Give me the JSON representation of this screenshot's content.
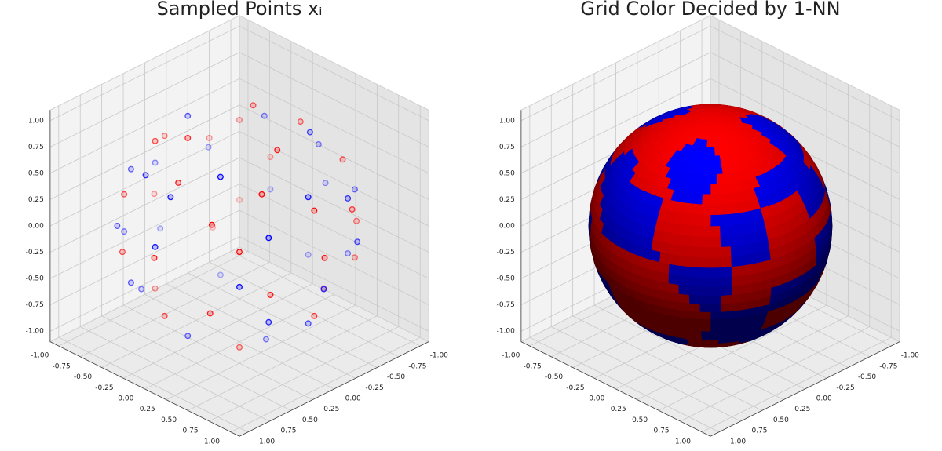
{
  "chart_data": [
    {
      "type": "scatter3d",
      "title": "Sampled Points xᵢ",
      "xlim": [
        -1.1,
        1.1
      ],
      "ylim": [
        -1.1,
        1.1
      ],
      "zlim": [
        -1.1,
        1.1
      ],
      "xticks": [
        {
          "value": -1,
          "label": "-1.00"
        },
        {
          "value": -0.75,
          "label": "-0.75"
        },
        {
          "value": -0.5,
          "label": "-0.50"
        },
        {
          "value": -0.25,
          "label": "-0.25"
        },
        {
          "value": 0,
          "label": "0.00"
        },
        {
          "value": 0.25,
          "label": "0.25"
        },
        {
          "value": 0.5,
          "label": "0.50"
        },
        {
          "value": 0.75,
          "label": "0.75"
        },
        {
          "value": 1,
          "label": "1.00"
        }
      ],
      "yticks": [
        {
          "value": -1,
          "label": "-1.00"
        },
        {
          "value": -0.75,
          "label": "-0.75"
        },
        {
          "value": -0.5,
          "label": "-0.50"
        },
        {
          "value": -0.25,
          "label": "-0.25"
        },
        {
          "value": 0,
          "label": "0.00"
        },
        {
          "value": 0.25,
          "label": "0.25"
        },
        {
          "value": 0.5,
          "label": "0.50"
        },
        {
          "value": 0.75,
          "label": "0.75"
        },
        {
          "value": 1,
          "label": "1.00"
        }
      ],
      "zticks": [
        {
          "value": -1,
          "label": "-1.00"
        },
        {
          "value": -0.75,
          "label": "-0.75"
        },
        {
          "value": -0.5,
          "label": "-0.50"
        },
        {
          "value": -0.25,
          "label": "-0.25"
        },
        {
          "value": 0,
          "label": "0.00"
        },
        {
          "value": 0.25,
          "label": "0.25"
        },
        {
          "value": 0.5,
          "label": "0.50"
        },
        {
          "value": 0.75,
          "label": "0.75"
        },
        {
          "value": 1,
          "label": "1.00"
        }
      ],
      "series": [
        {
          "color": "#ff0000",
          "x": [
            0.44,
            -0.22,
            -0.22,
            0.62,
            -0.62,
            0,
            0,
            0.87,
            0.44,
            -0.87,
            -0.62,
            0.44,
            0.67,
            -0.67,
            -0.83,
            0.83,
            0.99,
            0,
            -0.5,
            -0.5,
            -0.99,
            0.5,
            0.86,
            0.48,
            -0.67,
            0.67,
            0,
            -0.75,
            0.87,
            -0.62,
            0.36,
            0.31
          ],
          "y": [
            0,
            0.38,
            -0.38,
            0.36,
            0.36,
            -0.71,
            0.71,
            0,
            0.76,
            0,
            -0.62,
            -0.76,
            0.67,
            0.67,
            -0.48,
            -0.48,
            0,
            0.99,
            -0.86,
            0.86,
            0,
            -0.86,
            0.5,
            0.82,
            -0.67,
            -0.67,
            0.87,
            -0.44,
            0,
            0.36,
            -0.62,
            0.31
          ],
          "z": [
            0.9,
            0.9,
            0.9,
            0.7,
            0.7,
            0.7,
            0.7,
            0.5,
            0.5,
            0.5,
            0.5,
            0.5,
            0.3,
            0.3,
            0.3,
            0.3,
            0.1,
            0.1,
            0.1,
            -0.1,
            -0.1,
            -0.1,
            -0.1,
            -0.3,
            -0.3,
            -0.3,
            -0.5,
            -0.5,
            -0.5,
            -0.7,
            -0.7,
            -0.9
          ]
        },
        {
          "color": "#0000ff",
          "x": [
            0.3,
            -0.6,
            0.3,
            0.8,
            -0.4,
            -0.4,
            0,
            0.8,
            -0.8,
            0,
            0.8,
            0,
            -0.98,
            0.49,
            -0.85,
            0.71,
            -0.71,
            0,
            0.87,
            0.98,
            -0.49,
            -0.85,
            -0.46,
            0.46,
            0.8,
            -0.92,
            0.8,
            0,
            -0.57,
            -0.52,
            0,
            0.31
          ],
          "y": [
            0.52,
            0,
            -0.52,
            0,
            0.69,
            -0.69,
            0.8,
            0.46,
            0.46,
            -0.92,
            -0.46,
            0.98,
            0,
            -0.85,
            -0.49,
            0.71,
            0.71,
            -1,
            -0.5,
            0,
            -0.85,
            0.49,
            0.8,
            -0.8,
            0.46,
            0,
            0,
            -0.8,
            0.57,
            -0.3,
            0.6,
            0
          ],
          "z": [
            0.8,
            0.8,
            0.8,
            0.6,
            0.6,
            0.6,
            0.6,
            0.4,
            0.4,
            0.4,
            0.4,
            0.2,
            0.2,
            0.2,
            0.2,
            0,
            0,
            0,
            0,
            -0.2,
            -0.2,
            -0.2,
            -0.4,
            -0.4,
            -0.4,
            -0.4,
            -0.6,
            -0.6,
            -0.6,
            -0.8,
            -0.8,
            -0.95
          ]
        }
      ]
    },
    {
      "type": "surface3d",
      "title": "Grid Color Decided by 1-NN",
      "xlim": [
        -1.1,
        1.1
      ],
      "ylim": [
        -1.1,
        1.1
      ],
      "zlim": [
        -1.1,
        1.1
      ],
      "xticks": [
        {
          "value": -1,
          "label": "-1.00"
        },
        {
          "value": -0.75,
          "label": "-0.75"
        },
        {
          "value": -0.5,
          "label": "-0.50"
        },
        {
          "value": -0.25,
          "label": "-0.25"
        },
        {
          "value": 0,
          "label": "0.00"
        },
        {
          "value": 0.25,
          "label": "0.25"
        },
        {
          "value": 0.5,
          "label": "0.50"
        },
        {
          "value": 0.75,
          "label": "0.75"
        },
        {
          "value": 1,
          "label": "1.00"
        }
      ],
      "yticks": [
        {
          "value": -1,
          "label": "-1.00"
        },
        {
          "value": -0.75,
          "label": "-0.75"
        },
        {
          "value": -0.5,
          "label": "-0.50"
        },
        {
          "value": -0.25,
          "label": "-0.25"
        },
        {
          "value": 0,
          "label": "0.00"
        },
        {
          "value": 0.25,
          "label": "0.25"
        },
        {
          "value": 0.5,
          "label": "0.50"
        },
        {
          "value": 0.75,
          "label": "0.75"
        },
        {
          "value": 1,
          "label": "1.00"
        }
      ],
      "zticks": [
        {
          "value": -1,
          "label": "-1.00"
        },
        {
          "value": -0.75,
          "label": "-0.75"
        },
        {
          "value": -0.5,
          "label": "-0.50"
        },
        {
          "value": -0.25,
          "label": "-0.25"
        },
        {
          "value": 0,
          "label": "0.00"
        },
        {
          "value": 0.25,
          "label": "0.25"
        },
        {
          "value": 0.5,
          "label": "0.50"
        },
        {
          "value": 0.75,
          "label": "0.75"
        },
        {
          "value": 1,
          "label": "1.00"
        }
      ]
    }
  ]
}
